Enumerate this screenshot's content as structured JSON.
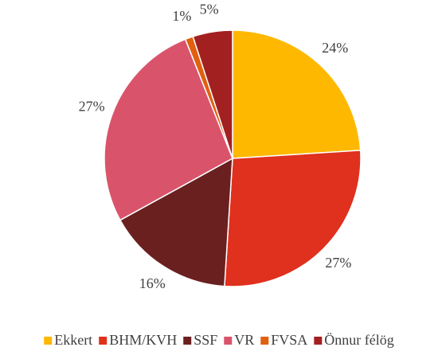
{
  "chart_data": {
    "type": "pie",
    "categories": [
      "Ekkert",
      "BHM/KVH",
      "SSF",
      "VR",
      "FVSA",
      "Önnur félög"
    ],
    "values": [
      24,
      27,
      16,
      27,
      1,
      5
    ],
    "value_labels": [
      "24%",
      "27%",
      "16%",
      "27%",
      "1%",
      "5%"
    ],
    "colors": [
      "#FFB800",
      "#E0301E",
      "#6B2020",
      "#D9546B",
      "#E06010",
      "#A32020"
    ],
    "legend": "bottom"
  }
}
